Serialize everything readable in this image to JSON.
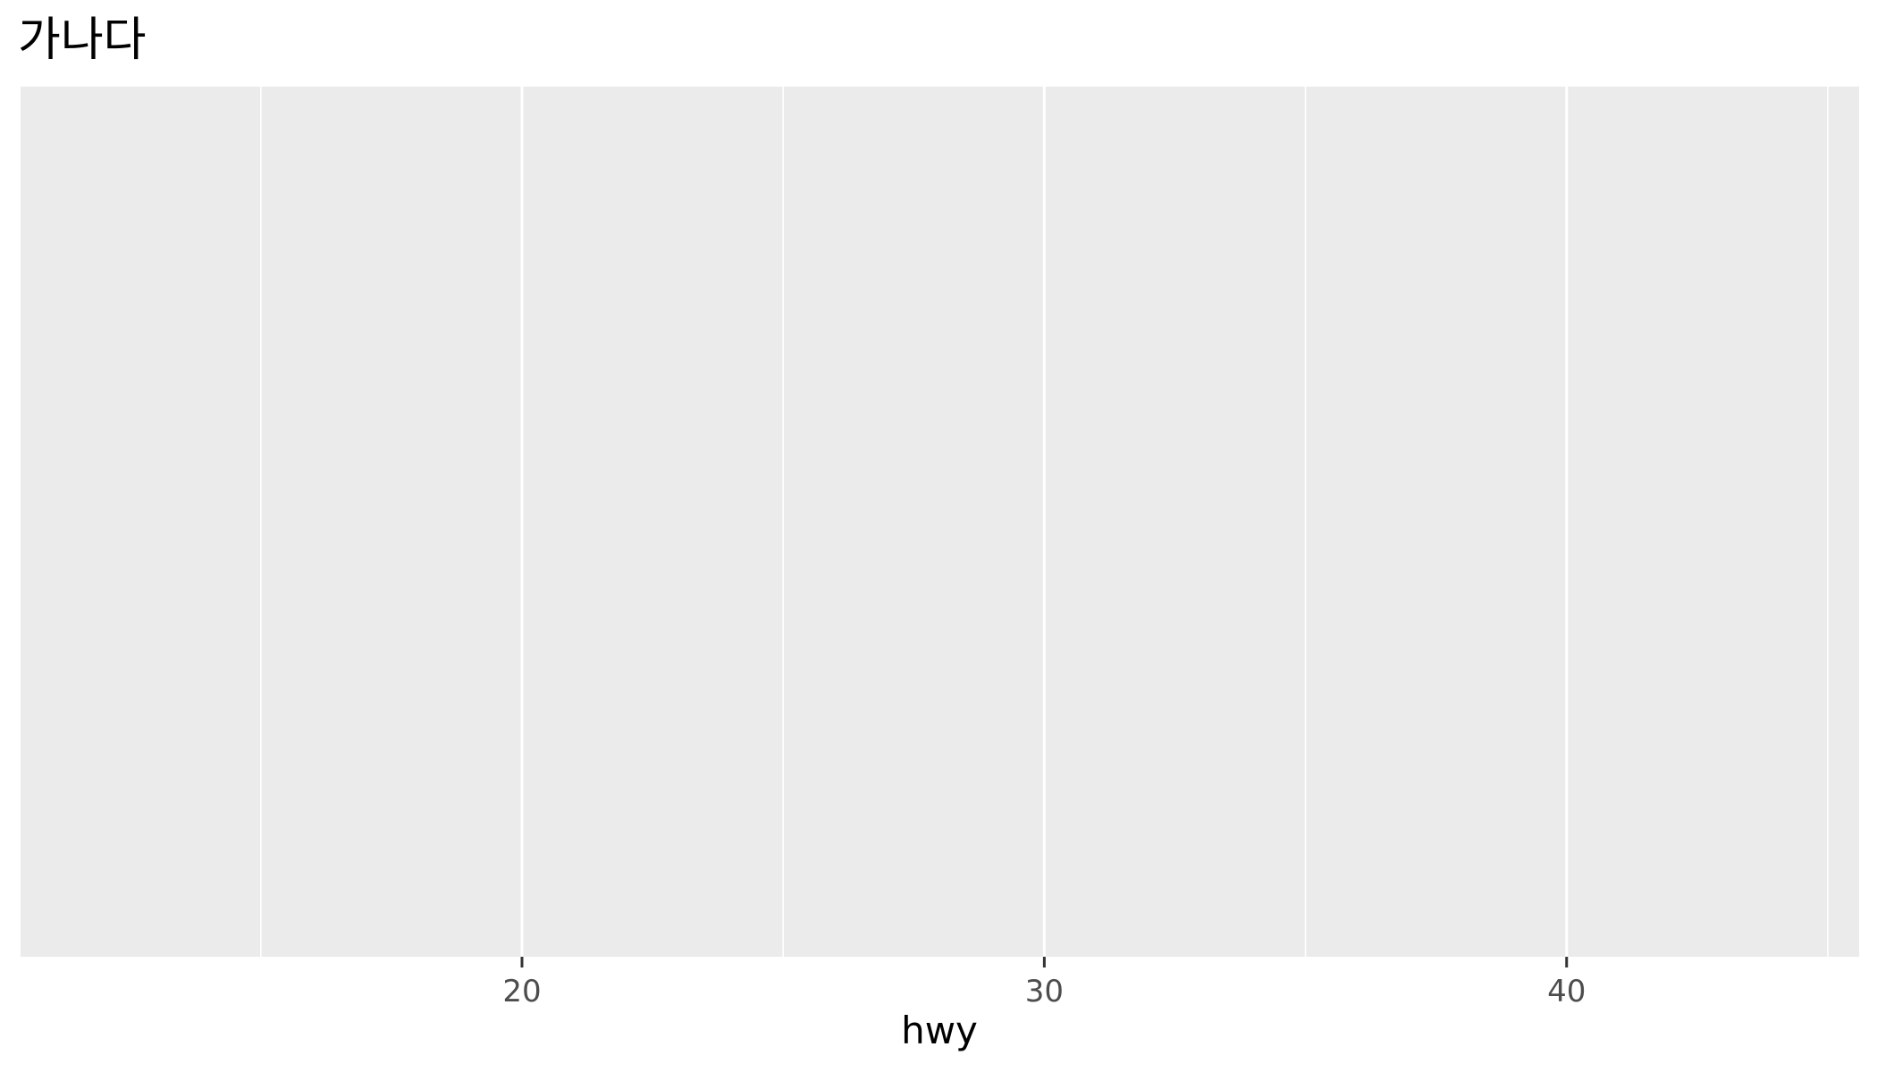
{
  "chart_data": {
    "type": "scatter",
    "title": "가나다",
    "xlabel": "hwy",
    "ylabel": "",
    "xlim": [
      10.4,
      45.6
    ],
    "ylim": null,
    "x_major_ticks": [
      20,
      30,
      40
    ],
    "x_tick_labels": [
      "20",
      "30",
      "40"
    ],
    "x_minor_gridlines": [
      15,
      25,
      35,
      45
    ],
    "y_ticks": [],
    "series": [],
    "grid": true,
    "legend": "none",
    "colors": {
      "panel_background": "#ebebeb",
      "gridline": "#ffffff",
      "tick_mark": "#333333",
      "tick_label": "#4d4d4d",
      "title_text": "#000000"
    }
  }
}
